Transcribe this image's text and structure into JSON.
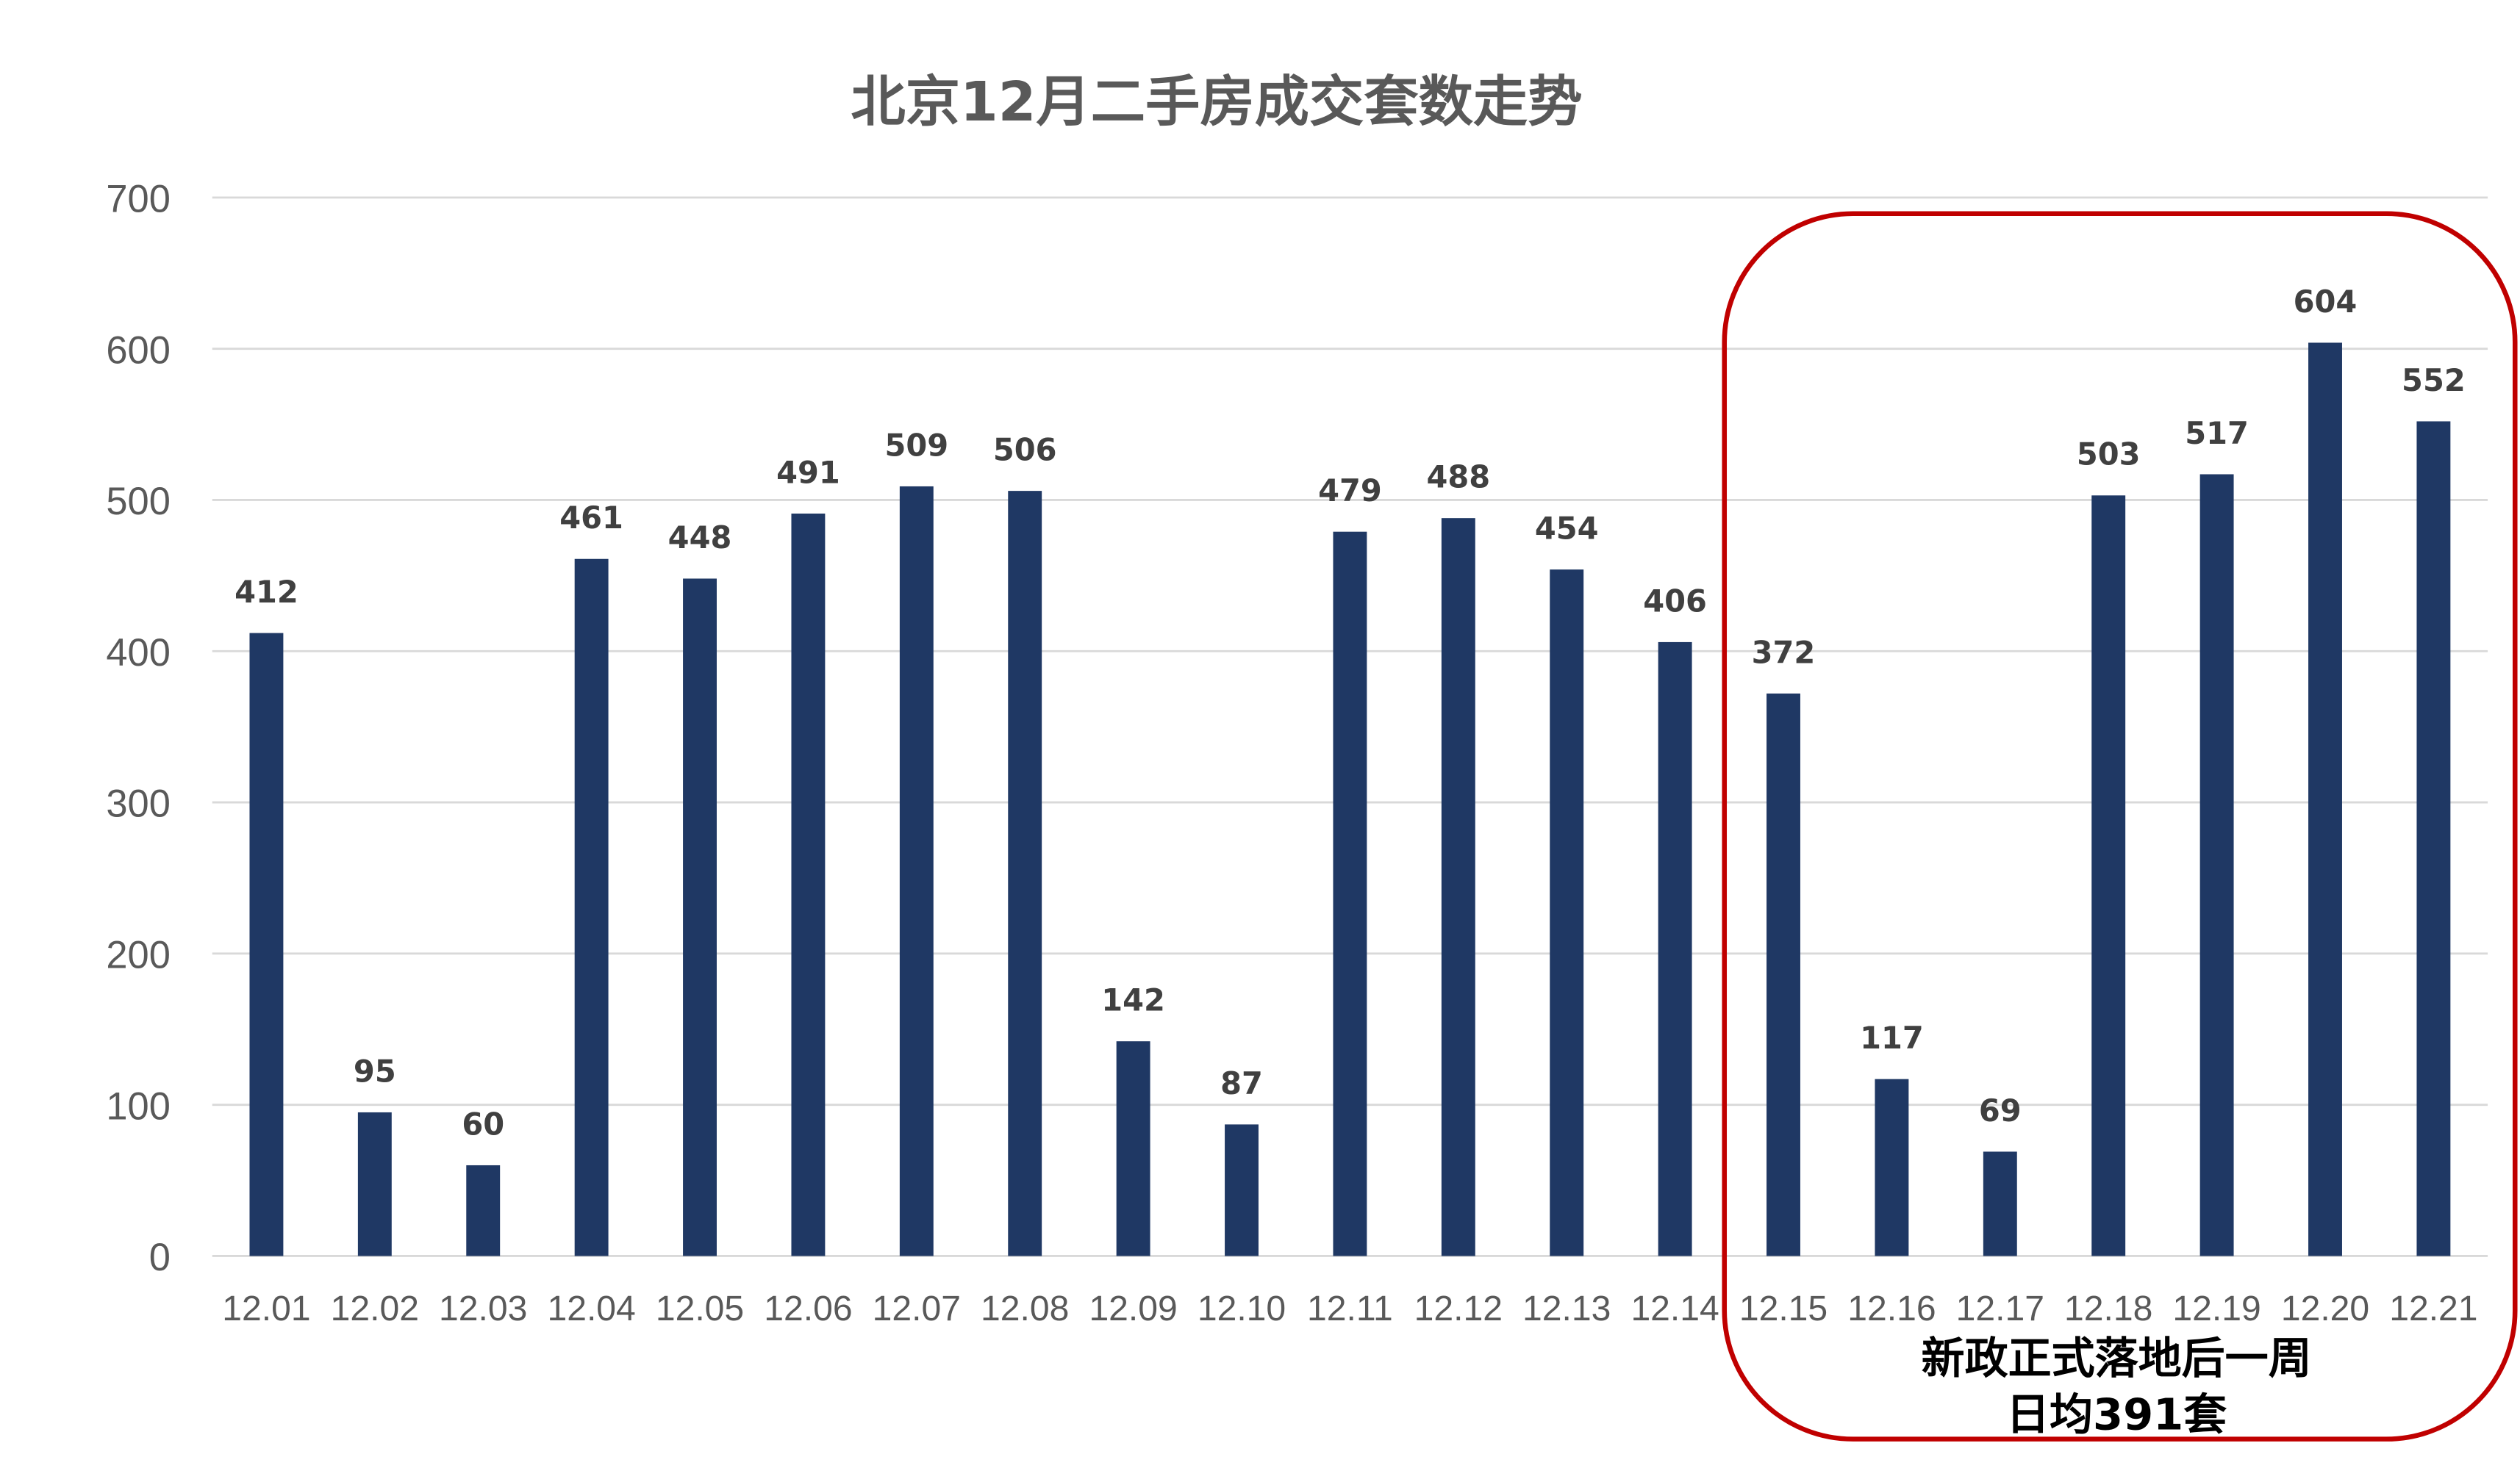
{
  "chart_data": {
    "type": "bar",
    "title": "北京12月二手房成交套数走势",
    "xlabel": "",
    "ylabel": "",
    "ylim": [
      0,
      700
    ],
    "yticks": [
      0,
      100,
      200,
      300,
      400,
      500,
      600,
      700
    ],
    "grid": true,
    "legend": "none",
    "categories": [
      "12.01",
      "12.02",
      "12.03",
      "12.04",
      "12.05",
      "12.06",
      "12.07",
      "12.08",
      "12.09",
      "12.10",
      "12.11",
      "12.12",
      "12.13",
      "12.14",
      "12.15",
      "12.16",
      "12.17",
      "12.18",
      "12.19",
      "12.20",
      "12.21"
    ],
    "values": [
      412,
      95,
      60,
      461,
      448,
      491,
      509,
      506,
      142,
      87,
      479,
      488,
      454,
      406,
      372,
      117,
      69,
      503,
      517,
      604,
      552
    ],
    "data_labels": true,
    "bar_color": "#1F3864",
    "annotation": {
      "line1": "新政正式落地后一周",
      "line2": "日均391套",
      "highlight_range": [
        "12.15",
        "12.21"
      ],
      "border_color": "#C00000"
    }
  }
}
